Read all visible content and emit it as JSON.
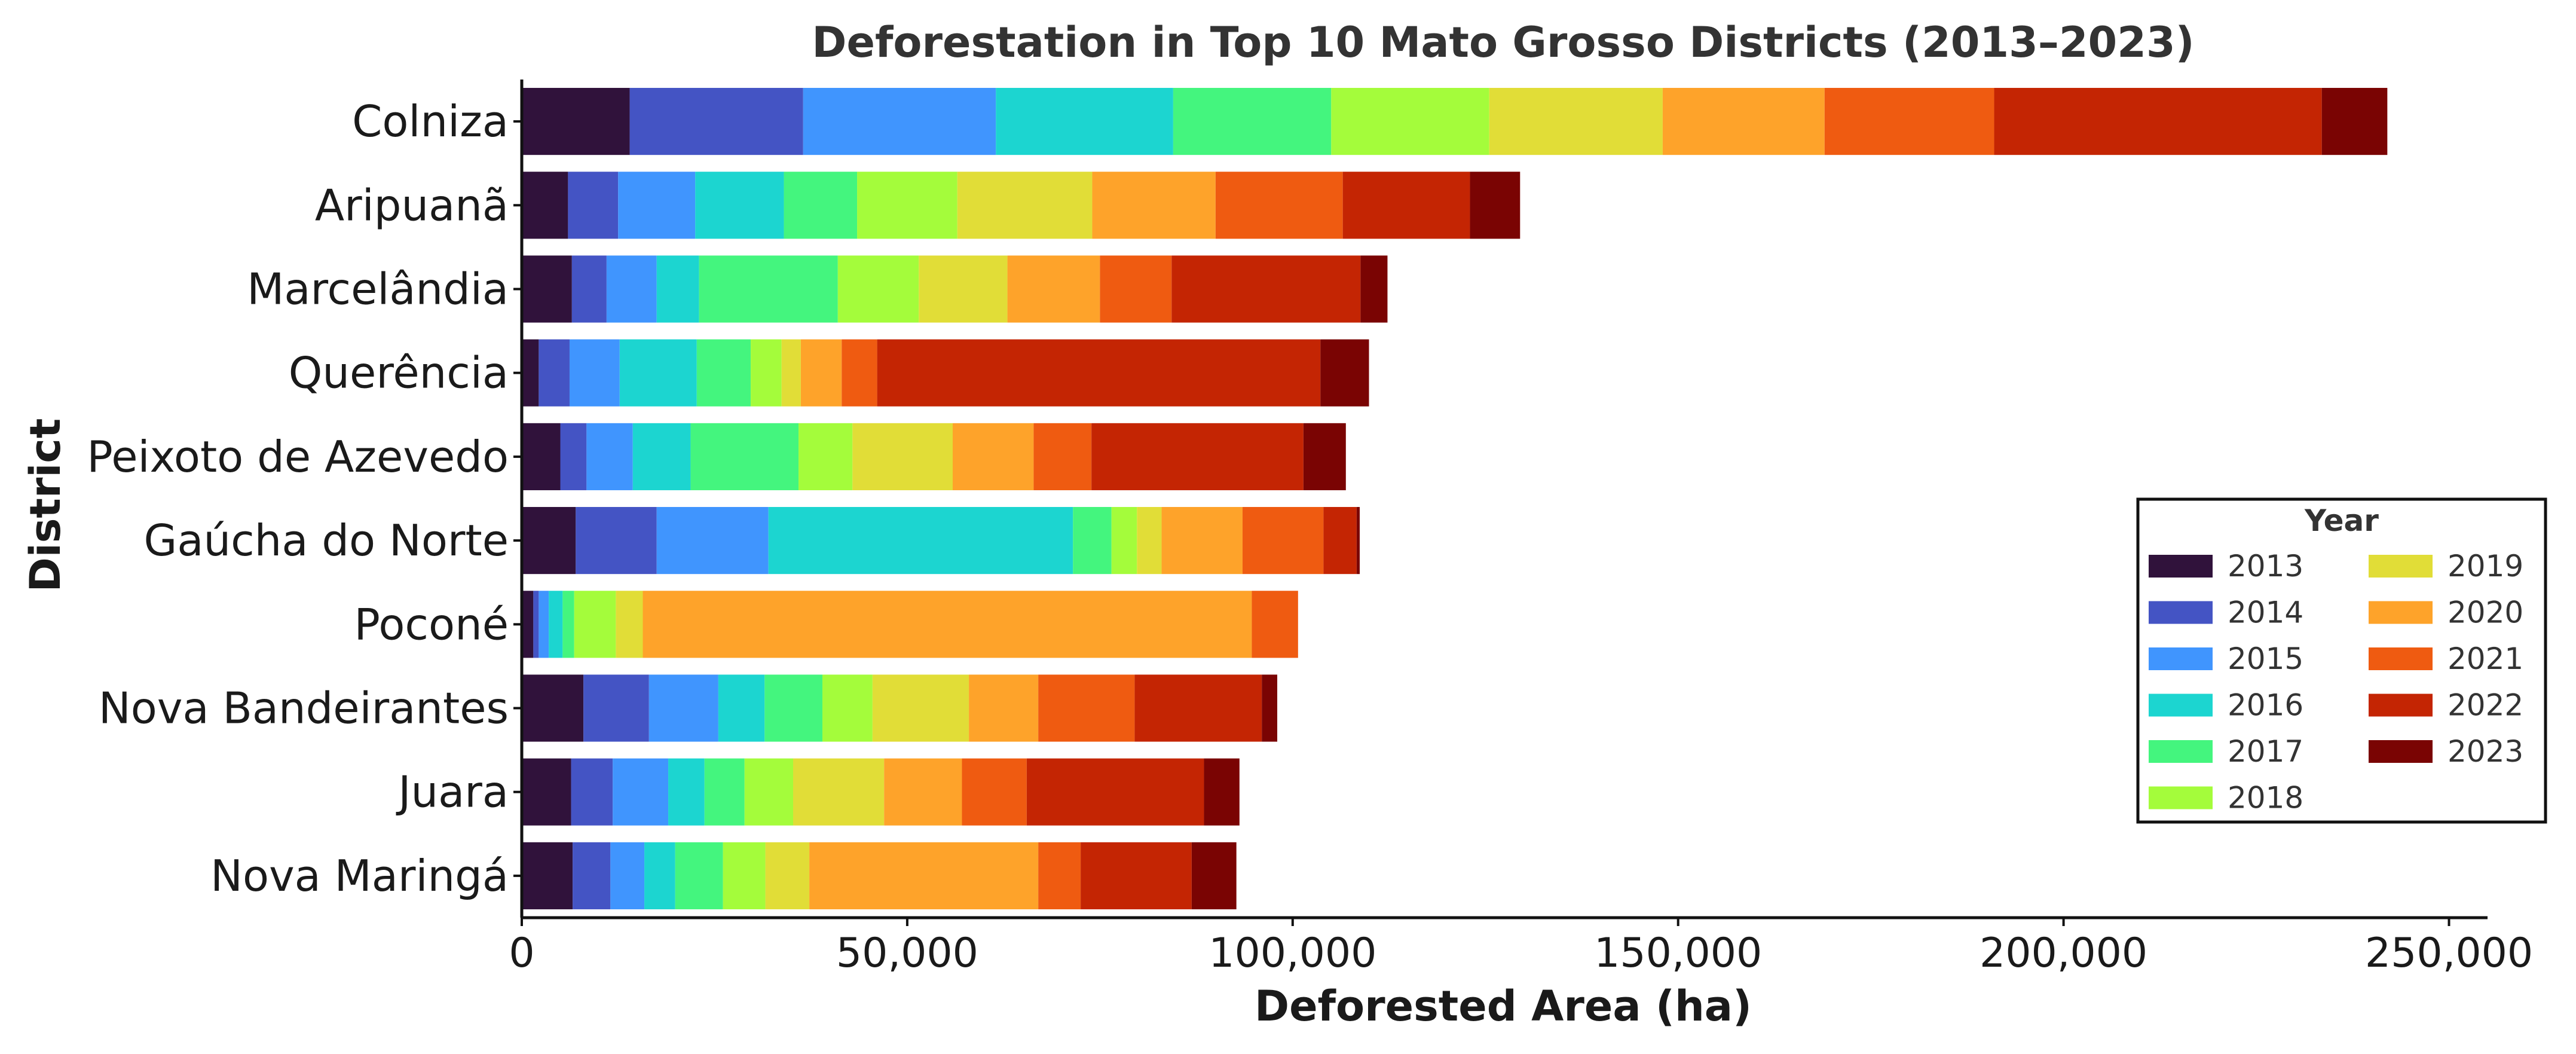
{
  "chart_data": {
    "type": "bar",
    "orientation": "horizontal",
    "stacked": true,
    "title": "Deforestation in Top 10 Mato Grosso Districts (2013–2023)",
    "xlabel": "Deforested Area (ha)",
    "ylabel": "District",
    "xlim": [
      0,
      255000
    ],
    "xticks": [
      0,
      50000,
      100000,
      150000,
      200000,
      250000
    ],
    "xtick_labels": [
      "0",
      "50,000",
      "100,000",
      "150,000",
      "200,000",
      "250,000"
    ],
    "grid": false,
    "legend": {
      "title": "Year",
      "position": "right",
      "columns": 2
    },
    "categories": [
      "Colniza",
      "Aripuanã",
      "Marcelândia",
      "Querência",
      "Peixoto de Azevedo",
      "Gaúcha do Norte",
      "Poconé",
      "Nova Bandeirantes",
      "Juara",
      "Nova Maringá"
    ],
    "series": [
      {
        "name": "2013",
        "color": "#30123b",
        "values": [
          14000,
          6000,
          6500,
          2200,
          5000,
          7000,
          1500,
          8000,
          6400,
          6600
        ]
      },
      {
        "name": "2014",
        "color": "#4454c4",
        "values": [
          22500,
          6500,
          4500,
          4000,
          3400,
          10500,
          700,
          8500,
          5400,
          4900
        ]
      },
      {
        "name": "2015",
        "color": "#4095fe",
        "values": [
          25000,
          10000,
          6500,
          6500,
          6000,
          14500,
          1300,
          9000,
          7200,
          4400
        ]
      },
      {
        "name": "2016",
        "color": "#1cd5d0",
        "values": [
          23000,
          11500,
          5500,
          10000,
          7500,
          39500,
          1800,
          6000,
          4700,
          4000
        ]
      },
      {
        "name": "2017",
        "color": "#44f57e",
        "values": [
          20500,
          9500,
          18000,
          7000,
          14000,
          5000,
          1500,
          7500,
          5200,
          6200
        ]
      },
      {
        "name": "2018",
        "color": "#a4fc3b",
        "values": [
          20500,
          13000,
          10500,
          4000,
          7000,
          3300,
          5400,
          6500,
          6300,
          5500
        ]
      },
      {
        "name": "2019",
        "color": "#e1dd37",
        "values": [
          22500,
          17500,
          11500,
          2500,
          13000,
          3200,
          3500,
          12500,
          11800,
          5700
        ]
      },
      {
        "name": "2020",
        "color": "#fea32a",
        "values": [
          21000,
          16000,
          12000,
          5300,
          10500,
          10500,
          79000,
          9000,
          10100,
          29700
        ]
      },
      {
        "name": "2021",
        "color": "#ef5b11",
        "values": [
          22000,
          16500,
          9300,
          4600,
          7500,
          10500,
          6000,
          12500,
          8400,
          5500
        ]
      },
      {
        "name": "2022",
        "color": "#c42503",
        "values": [
          42500,
          16500,
          24500,
          57500,
          27500,
          4300,
          0,
          16500,
          23000,
          14400
        ]
      },
      {
        "name": "2023",
        "color": "#7a0403",
        "values": [
          8500,
          6500,
          3500,
          6300,
          5500,
          400,
          0,
          2000,
          4600,
          5800
        ]
      }
    ]
  }
}
